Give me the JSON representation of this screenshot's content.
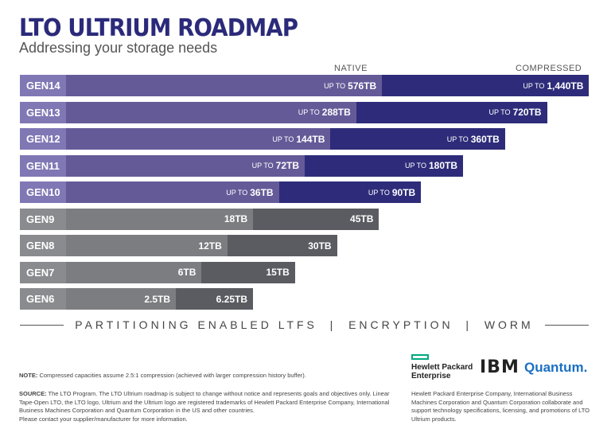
{
  "header": {
    "title": "LTO ULTRIUM ROADMAP",
    "subtitle": "Addressing your storage needs"
  },
  "chart_data": {
    "type": "bar",
    "orientation": "horizontal",
    "title": "LTO ULTRIUM ROADMAP",
    "subtitle": "Addressing your storage needs",
    "column_headers": {
      "native": "NATIVE",
      "compressed": "COMPRESSED"
    },
    "categories": [
      "GEN14",
      "GEN13",
      "GEN12",
      "GEN11",
      "GEN10",
      "GEN9",
      "GEN8",
      "GEN7",
      "GEN6"
    ],
    "series": [
      {
        "name": "NATIVE",
        "unit": "TB",
        "values": [
          576,
          288,
          144,
          72,
          36,
          18,
          12,
          6,
          2.5
        ],
        "labels": [
          "576TB",
          "288TB",
          "144TB",
          "72TB",
          "36TB",
          "18TB",
          "12TB",
          "6TB",
          "2.5TB"
        ]
      },
      {
        "name": "COMPRESSED",
        "unit": "TB",
        "values": [
          1440,
          720,
          360,
          180,
          90,
          45,
          30,
          15,
          6.25
        ],
        "labels": [
          "1,440TB",
          "720TB",
          "360TB",
          "180TB",
          "90TB",
          "45TB",
          "30TB",
          "15TB",
          "6.25TB"
        ]
      }
    ],
    "prefix": "UP TO",
    "prefixed_count": 5,
    "colors": {
      "future_label": "#8077b5",
      "future_native": "#655a98",
      "future_compressed": "#2e2c7a",
      "past_label": "#8a8b8e",
      "past_native": "#7b7d81",
      "past_compressed": "#5a5c61"
    }
  },
  "features": "PARTITIONING ENABLED LTFS  |  ENCRYPTION  |  WORM",
  "footer": {
    "note_label": "NOTE:",
    "note": "Compressed capacities assume 2.5:1 compression (achieved with larger compression history buffer).",
    "source_label": "SOURCE:",
    "source": "The LTO Program. The LTO Ultrium roadmap is subject to change without notice and represents goals and objectives only. Linear Tape-Open LTO, the LTO logo, Ultrium and the Ultrium logo are registered trademarks of Hewlett Packard Enterprise Company, International Business Machines Corporation and Quantum Corporation in the US and other countries.",
    "contact": "Please contact your supplier/manufacturer for more information.",
    "partner_text": "Hewlett Packard Enterprise Company, International Business Machines Corporation and Quantum Corporation collaborate and support technology specifications, licensing, and promotions of LTO Ultrium products."
  },
  "logos": {
    "hpe_line1": "Hewlett Packard",
    "hpe_line2": "Enterprise",
    "ibm": "IBM",
    "quantum": "Quantum."
  }
}
